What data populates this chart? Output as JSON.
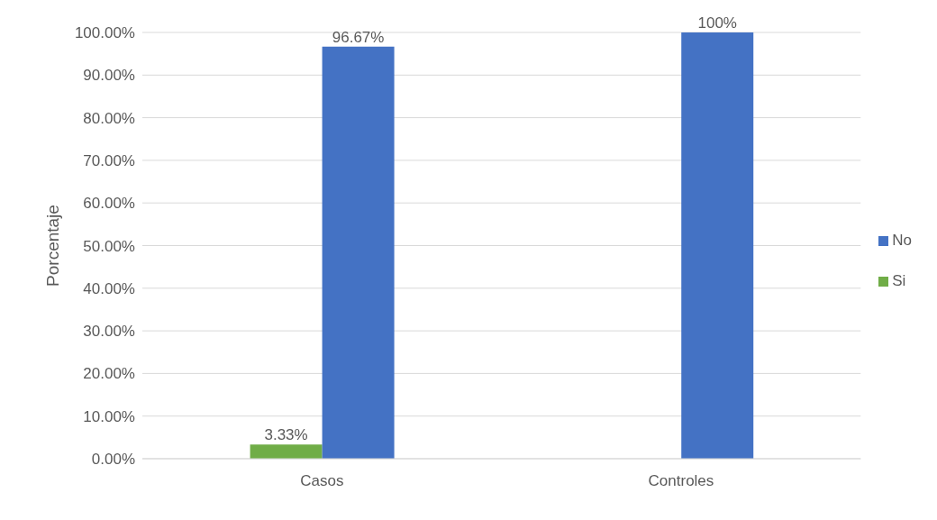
{
  "chart_data": {
    "type": "bar",
    "ylabel": "Porcentaje",
    "categories": [
      "Casos",
      "Controles"
    ],
    "series": [
      {
        "name": "Si",
        "color": "#70ad47",
        "values": [
          3.33,
          0
        ],
        "value_labels": [
          "3.33%",
          null
        ]
      },
      {
        "name": "No",
        "color": "#4472c4",
        "values": [
          96.67,
          100
        ],
        "value_labels": [
          "96.67%",
          "100%"
        ]
      }
    ],
    "ylim": [
      0,
      100
    ],
    "yticks": [
      {
        "value": 0,
        "label": "0.00%"
      },
      {
        "value": 10,
        "label": "10.00%"
      },
      {
        "value": 20,
        "label": "20.00%"
      },
      {
        "value": 30,
        "label": "30.00%"
      },
      {
        "value": 40,
        "label": "40.00%"
      },
      {
        "value": 50,
        "label": "50.00%"
      },
      {
        "value": 60,
        "label": "60.00%"
      },
      {
        "value": 70,
        "label": "70.00%"
      },
      {
        "value": 80,
        "label": "80.00%"
      },
      {
        "value": 90,
        "label": "90.00%"
      },
      {
        "value": 100,
        "label": "100.00%"
      }
    ],
    "grid": "y",
    "legend": "right"
  }
}
